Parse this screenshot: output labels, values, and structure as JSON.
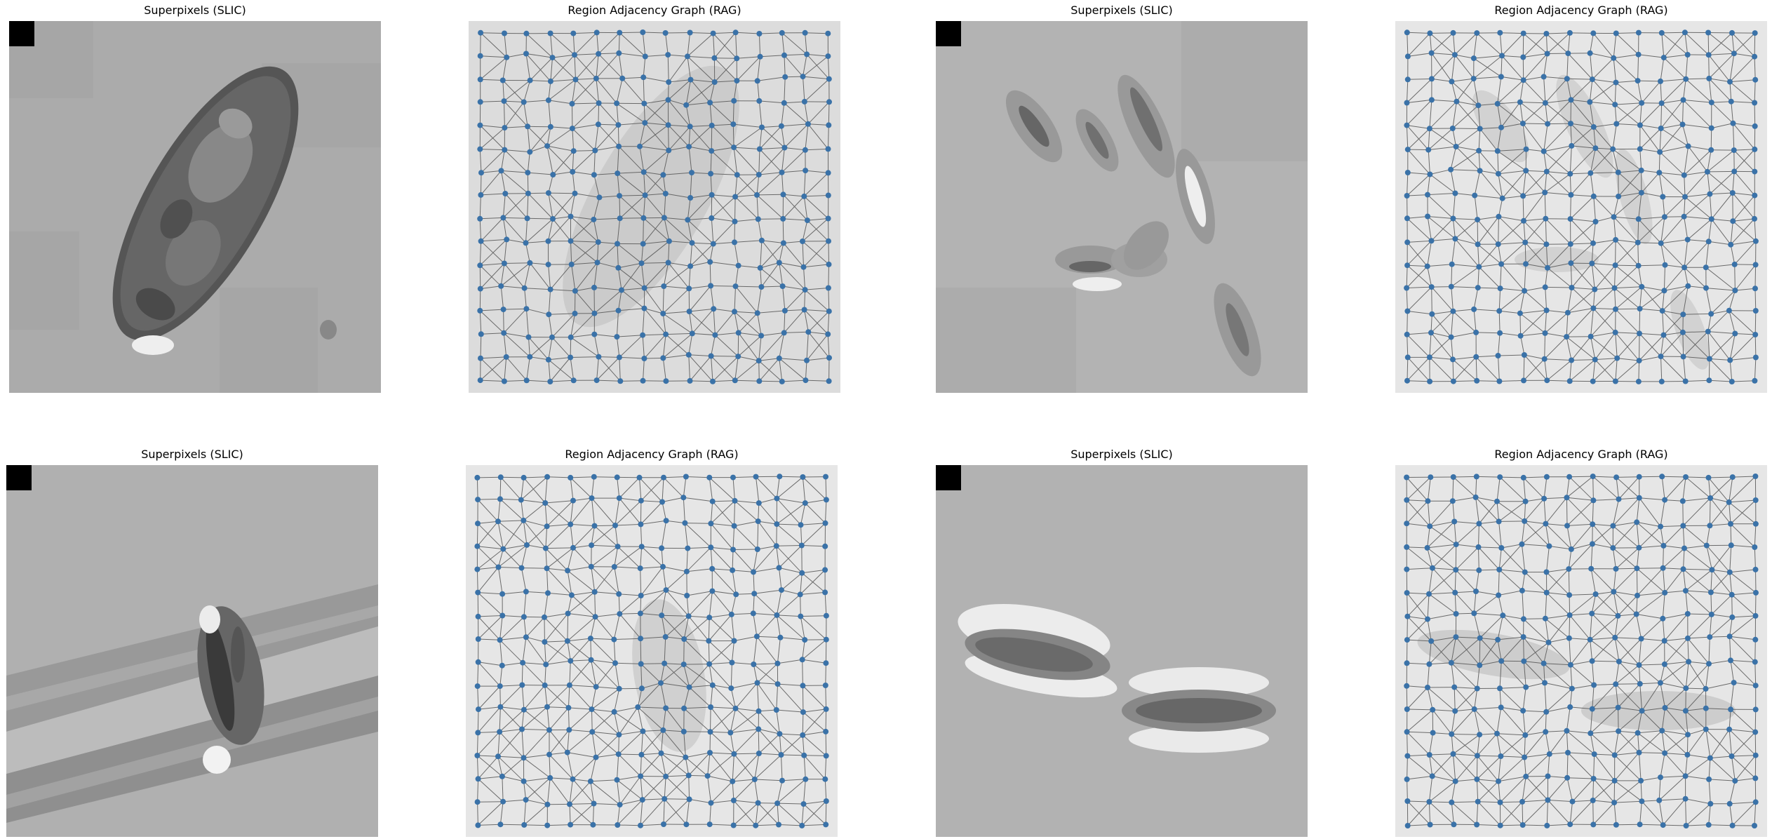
{
  "panels": [
    {
      "title": "Superpixels (SLIC)"
    },
    {
      "title": "Region Adjacency Graph (RAG)"
    },
    {
      "title": "Superpixels (SLIC)"
    },
    {
      "title": "Region Adjacency Graph (RAG)"
    },
    {
      "title": "Superpixels (SLIC)"
    },
    {
      "title": "Region Adjacency Graph (RAG)"
    },
    {
      "title": "Superpixels (SLIC)"
    },
    {
      "title": "Region Adjacency Graph (RAG)"
    }
  ],
  "colors": {
    "node": "#3a72a8",
    "edge": "#555555",
    "background_slic": "#aaaaaa",
    "background_rag": "#dcdcdc",
    "marker": "#000000"
  }
}
